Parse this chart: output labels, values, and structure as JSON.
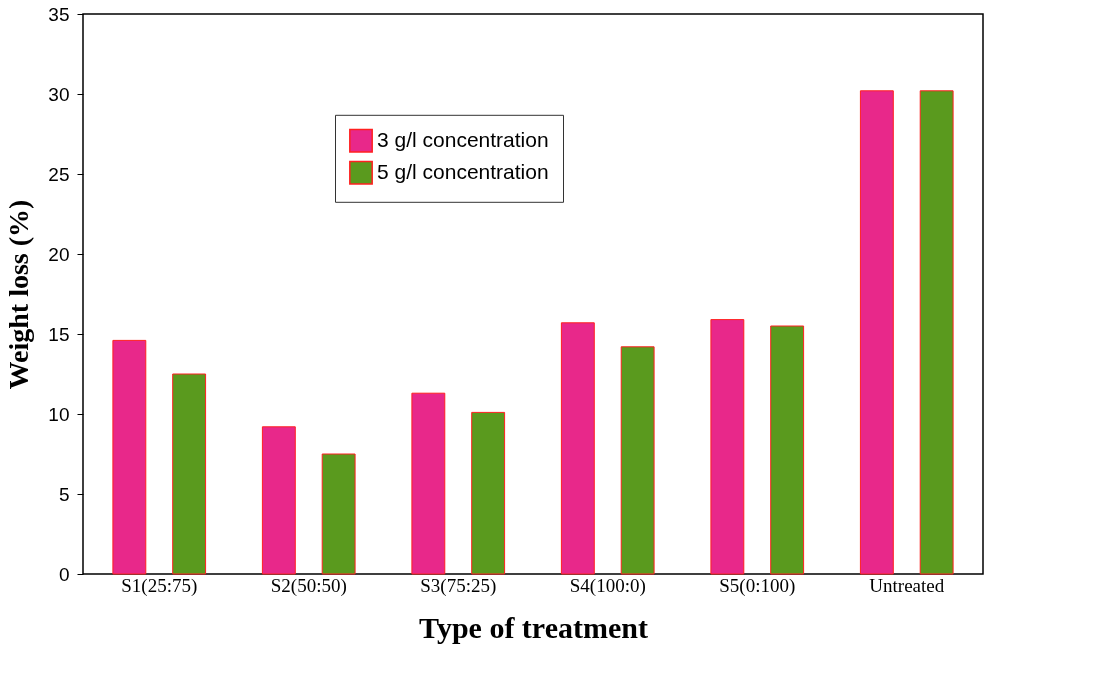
{
  "chart_data": {
    "type": "bar",
    "xlabel": "Type of treatment",
    "ylabel": "Weight loss (%)",
    "categories": [
      "S1(25:75)",
      "S2(50:50)",
      "S3(75:25)",
      "S4(100:0)",
      "S5(0:100)",
      "Untreated"
    ],
    "series": [
      {
        "name": "3 g/l concentration",
        "color": "#e8288a",
        "values": [
          14.6,
          9.2,
          11.3,
          15.7,
          15.9,
          30.2
        ]
      },
      {
        "name": "5 g/l concentration",
        "color": "#5a9a1e",
        "values": [
          12.5,
          7.5,
          10.1,
          14.2,
          15.5,
          30.2
        ]
      }
    ],
    "ylim": [
      0,
      35
    ],
    "yticks": [
      0,
      5,
      10,
      15,
      20,
      25,
      30,
      35
    ],
    "grid": false,
    "legend": "top"
  }
}
